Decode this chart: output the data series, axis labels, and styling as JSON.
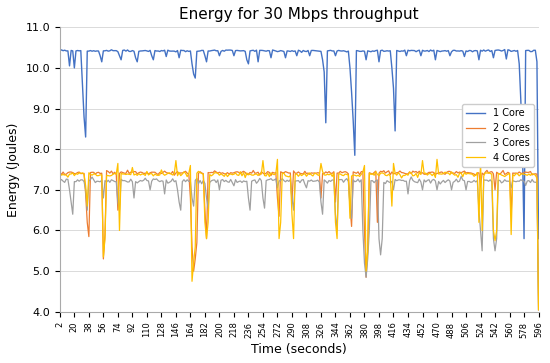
{
  "title": "Energy for 30 Mbps throughput",
  "xlabel": "Time (seconds)",
  "ylabel": "Energy (Joules)",
  "ylim": [
    4.0,
    11.0
  ],
  "yticks": [
    4.0,
    5.0,
    6.0,
    7.0,
    8.0,
    9.0,
    10.0,
    11.0
  ],
  "time_start": 2,
  "time_end": 596,
  "time_step": 2,
  "legend_labels": [
    "1 Core",
    "2 Cores",
    "3 Cores",
    "4 Cores"
  ],
  "line_colors": [
    "#4472C4",
    "#ED7D31",
    "#A0A0A0",
    "#FFC000"
  ],
  "background_color": "#FFFFFF",
  "xtick_labels": [
    "2",
    "20",
    "38",
    "56",
    "74",
    "92",
    "110",
    "128",
    "146",
    "164",
    "182",
    "200",
    "218",
    "236",
    "254",
    "272",
    "290",
    "308",
    "326",
    "344",
    "362",
    "380",
    "398",
    "416",
    "434",
    "452",
    "470",
    "488",
    "506",
    "524",
    "542",
    "560",
    "578",
    "596"
  ],
  "xtick_values": [
    2,
    20,
    38,
    56,
    74,
    92,
    110,
    128,
    146,
    164,
    182,
    200,
    218,
    236,
    254,
    272,
    290,
    308,
    326,
    344,
    362,
    380,
    398,
    416,
    434,
    452,
    470,
    488,
    506,
    524,
    542,
    560,
    578,
    596
  ],
  "core1_baseline": 10.42,
  "core1_noise": 0.012,
  "core2_baseline": 7.42,
  "core2_noise": 0.025,
  "core3_baseline": 7.22,
  "core3_noise": 0.03,
  "core4_baseline": 7.38,
  "core4_noise": 0.03,
  "core1_drops": [
    [
      14,
      10.05
    ],
    [
      20,
      10.0
    ],
    [
      30,
      9.6
    ],
    [
      32,
      8.8
    ],
    [
      34,
      8.3
    ],
    [
      52,
      10.3
    ],
    [
      54,
      10.15
    ],
    [
      76,
      10.3
    ],
    [
      78,
      10.2
    ],
    [
      96,
      10.25
    ],
    [
      98,
      10.15
    ],
    [
      116,
      10.3
    ],
    [
      118,
      10.2
    ],
    [
      134,
      10.28
    ],
    [
      150,
      10.25
    ],
    [
      166,
      10.1
    ],
    [
      168,
      9.85
    ],
    [
      170,
      9.75
    ],
    [
      182,
      10.3
    ],
    [
      184,
      10.15
    ],
    [
      200,
      10.3
    ],
    [
      218,
      10.3
    ],
    [
      234,
      10.2
    ],
    [
      236,
      10.1
    ],
    [
      248,
      10.15
    ],
    [
      264,
      10.25
    ],
    [
      282,
      10.25
    ],
    [
      296,
      10.3
    ],
    [
      312,
      10.3
    ],
    [
      328,
      10.2
    ],
    [
      330,
      9.9
    ],
    [
      332,
      8.65
    ],
    [
      344,
      10.3
    ],
    [
      362,
      10.0
    ],
    [
      364,
      9.4
    ],
    [
      366,
      8.7
    ],
    [
      368,
      7.85
    ],
    [
      382,
      10.2
    ],
    [
      398,
      10.15
    ],
    [
      414,
      10.0
    ],
    [
      416,
      9.5
    ],
    [
      418,
      8.45
    ],
    [
      432,
      10.3
    ],
    [
      450,
      10.3
    ],
    [
      468,
      10.2
    ],
    [
      486,
      10.3
    ],
    [
      504,
      10.28
    ],
    [
      522,
      10.2
    ],
    [
      540,
      10.25
    ],
    [
      556,
      10.22
    ],
    [
      572,
      10.1
    ],
    [
      574,
      9.2
    ],
    [
      576,
      8.05
    ],
    [
      578,
      5.8
    ],
    [
      594,
      10.15
    ],
    [
      596,
      5.8
    ]
  ],
  "core2_drops": [
    [
      34,
      6.9
    ],
    [
      36,
      6.2
    ],
    [
      38,
      5.85
    ],
    [
      56,
      5.3
    ],
    [
      58,
      5.9
    ],
    [
      74,
      6.5
    ],
    [
      164,
      6.8
    ],
    [
      166,
      5.6
    ],
    [
      168,
      5.0
    ],
    [
      170,
      5.3
    ],
    [
      172,
      5.7
    ],
    [
      182,
      6.5
    ],
    [
      184,
      5.8
    ],
    [
      272,
      6.8
    ],
    [
      274,
      6.35
    ],
    [
      290,
      6.7
    ],
    [
      326,
      6.8
    ],
    [
      344,
      6.7
    ],
    [
      362,
      6.6
    ],
    [
      364,
      6.1
    ],
    [
      380,
      6.0
    ],
    [
      382,
      4.85
    ],
    [
      384,
      5.5
    ],
    [
      396,
      6.2
    ],
    [
      524,
      7.1
    ],
    [
      542,
      7.0
    ],
    [
      562,
      6.4
    ],
    [
      596,
      4.05
    ]
  ],
  "core3_drops": [
    [
      14,
      7.0
    ],
    [
      16,
      6.7
    ],
    [
      18,
      6.4
    ],
    [
      34,
      7.0
    ],
    [
      36,
      6.5
    ],
    [
      56,
      6.8
    ],
    [
      74,
      6.7
    ],
    [
      76,
      6.5
    ],
    [
      94,
      6.8
    ],
    [
      114,
      7.0
    ],
    [
      132,
      6.9
    ],
    [
      148,
      7.0
    ],
    [
      150,
      6.7
    ],
    [
      152,
      6.5
    ],
    [
      166,
      6.8
    ],
    [
      168,
      6.6
    ],
    [
      184,
      6.8
    ],
    [
      186,
      6.55
    ],
    [
      200,
      7.0
    ],
    [
      218,
      7.1
    ],
    [
      236,
      6.8
    ],
    [
      238,
      6.5
    ],
    [
      254,
      6.8
    ],
    [
      256,
      6.55
    ],
    [
      272,
      7.05
    ],
    [
      290,
      6.8
    ],
    [
      292,
      6.5
    ],
    [
      308,
      7.05
    ],
    [
      326,
      6.7
    ],
    [
      328,
      6.4
    ],
    [
      344,
      6.4
    ],
    [
      346,
      6.0
    ],
    [
      362,
      6.6
    ],
    [
      364,
      6.3
    ],
    [
      378,
      6.0
    ],
    [
      380,
      5.2
    ],
    [
      382,
      4.85
    ],
    [
      384,
      5.3
    ],
    [
      386,
      6.0
    ],
    [
      398,
      5.8
    ],
    [
      400,
      5.4
    ],
    [
      402,
      5.8
    ],
    [
      416,
      7.0
    ],
    [
      434,
      6.9
    ],
    [
      452,
      7.0
    ],
    [
      470,
      7.0
    ],
    [
      488,
      7.0
    ],
    [
      506,
      7.0
    ],
    [
      522,
      6.5
    ],
    [
      524,
      6.0
    ],
    [
      526,
      5.5
    ],
    [
      540,
      5.8
    ],
    [
      542,
      5.5
    ],
    [
      544,
      5.8
    ],
    [
      562,
      7.05
    ],
    [
      596,
      4.05
    ]
  ],
  "core4_drops": [
    [
      34,
      7.1
    ],
    [
      36,
      6.6
    ],
    [
      56,
      5.35
    ],
    [
      58,
      5.8
    ],
    [
      74,
      5.35
    ],
    [
      76,
      6.0
    ],
    [
      164,
      5.6
    ],
    [
      166,
      4.75
    ],
    [
      168,
      5.2
    ],
    [
      170,
      5.6
    ],
    [
      182,
      6.2
    ],
    [
      184,
      5.8
    ],
    [
      186,
      6.2
    ],
    [
      272,
      6.4
    ],
    [
      274,
      5.8
    ],
    [
      276,
      6.2
    ],
    [
      290,
      6.4
    ],
    [
      292,
      5.8
    ],
    [
      326,
      6.5
    ],
    [
      344,
      6.2
    ],
    [
      346,
      5.8
    ],
    [
      362,
      6.3
    ],
    [
      380,
      5.8
    ],
    [
      382,
      5.0
    ],
    [
      384,
      5.5
    ],
    [
      414,
      6.6
    ],
    [
      522,
      6.2
    ],
    [
      524,
      5.85
    ],
    [
      526,
      6.0
    ],
    [
      540,
      6.0
    ],
    [
      542,
      5.75
    ],
    [
      544,
      6.0
    ],
    [
      562,
      5.9
    ],
    [
      596,
      4.05
    ]
  ],
  "core4_spikes": [
    [
      74,
      7.65
    ],
    [
      92,
      7.55
    ],
    [
      146,
      7.72
    ],
    [
      164,
      7.6
    ],
    [
      254,
      7.72
    ],
    [
      272,
      7.75
    ],
    [
      326,
      7.65
    ],
    [
      380,
      7.6
    ],
    [
      416,
      7.65
    ],
    [
      452,
      7.72
    ],
    [
      470,
      7.75
    ],
    [
      524,
      7.72
    ]
  ]
}
